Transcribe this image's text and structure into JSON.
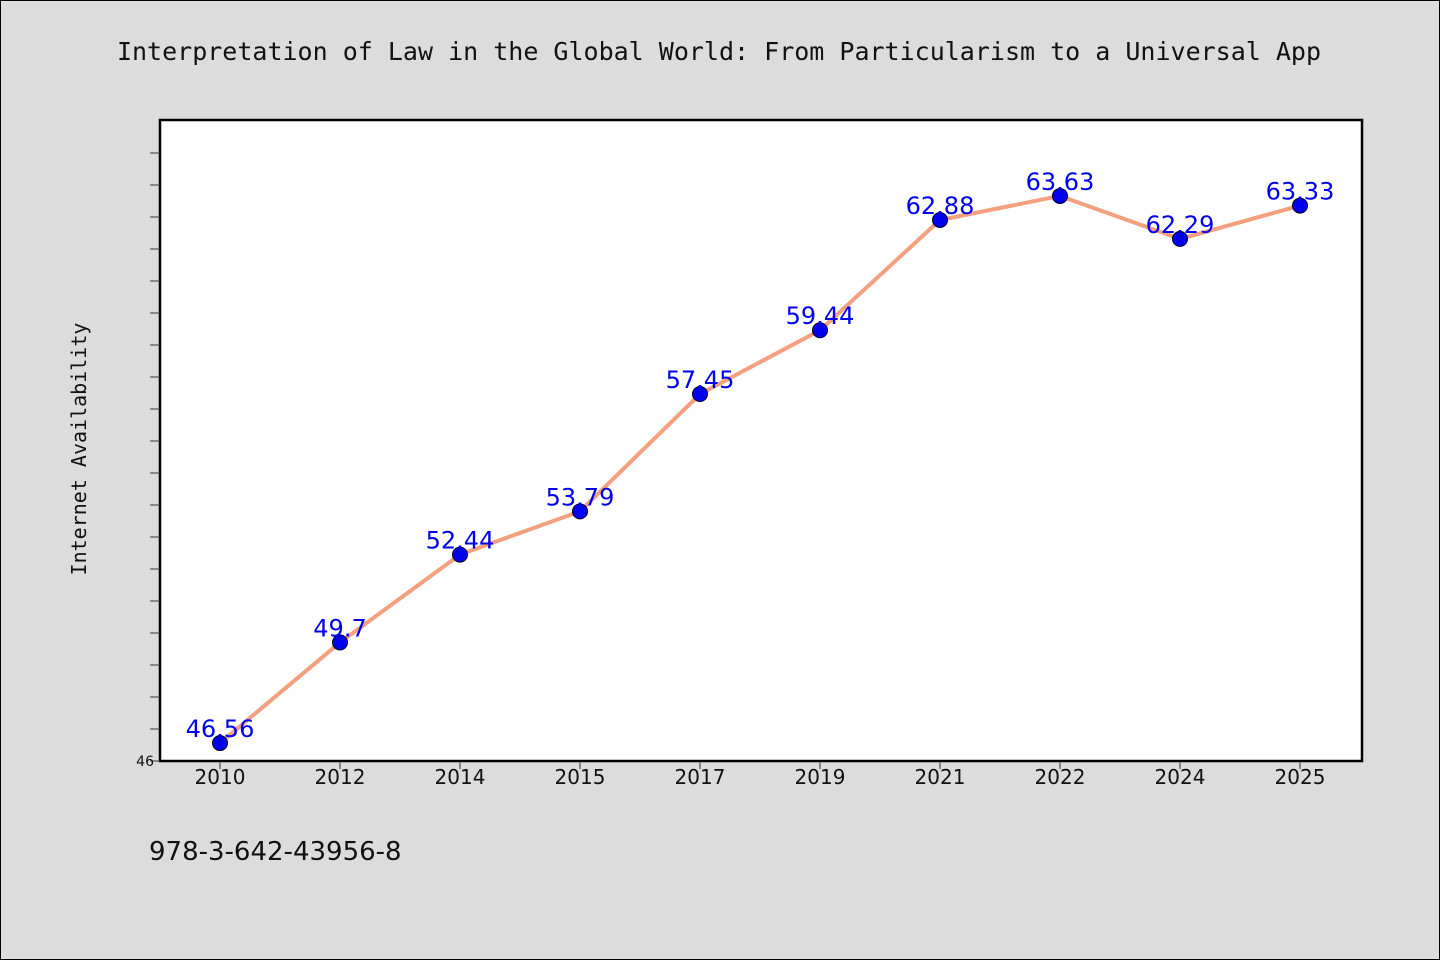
{
  "colors": {
    "background": "#dcdcdc",
    "plot_background": "#ffffff",
    "line": "#f4a07e",
    "marker": "#0000ee",
    "data_label": "#0000ee"
  },
  "footer": {
    "isbn": "978-3-642-43956-8"
  },
  "chart_data": {
    "type": "line",
    "title": "Interpretation of Law in the Global World: From Particularism to a Universal App",
    "xlabel": "",
    "ylabel": "Internet Availability",
    "categories": [
      "2010",
      "2012",
      "2014",
      "2015",
      "2017",
      "2019",
      "2021",
      "2022",
      "2024",
      "2025"
    ],
    "series": [
      {
        "values": [
          46.56,
          49.7,
          52.44,
          53.79,
          57.45,
          59.44,
          62.88,
          63.63,
          62.29,
          63.33
        ],
        "labels": [
          "46.56",
          "49.7",
          "52.44",
          "53.79",
          "57.45",
          "59.44",
          "62.88",
          "63.63",
          "62.29",
          "63.33"
        ]
      }
    ],
    "ylim": [
      46,
      66
    ],
    "ytick_labels": [
      "46"
    ],
    "grid": false,
    "legend": "none"
  }
}
